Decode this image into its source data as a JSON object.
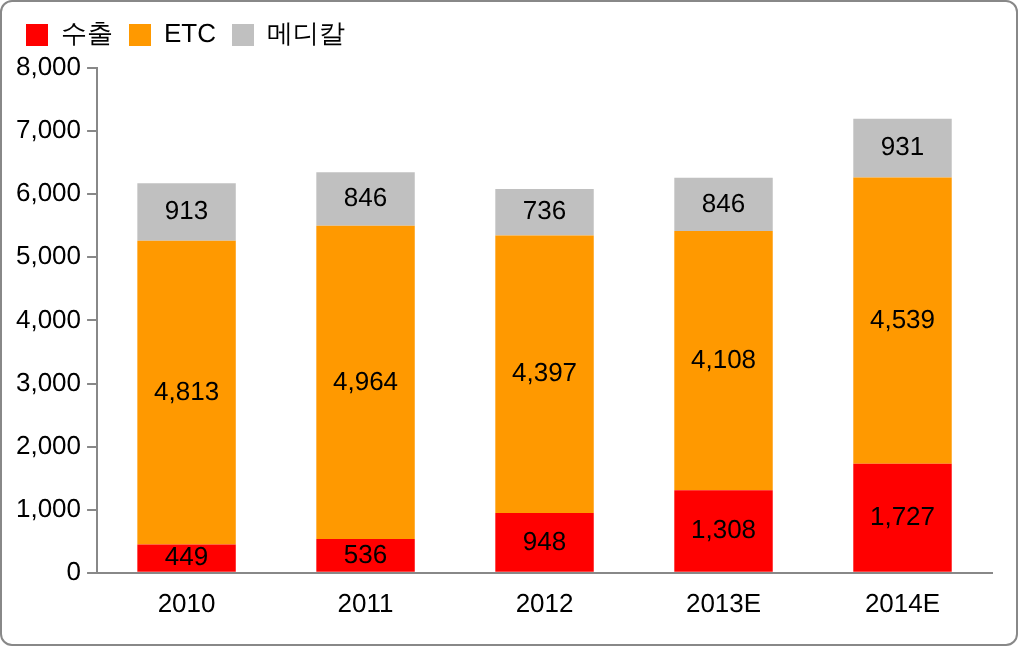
{
  "chart_data": {
    "type": "bar",
    "stacked": true,
    "categories": [
      "2010",
      "2011",
      "2012",
      "2013E",
      "2014E"
    ],
    "series": [
      {
        "name": "수출",
        "color": "#ff0000",
        "values": [
          449,
          536,
          948,
          1308,
          1727
        ],
        "value_labels": [
          "449",
          "536",
          "948",
          "1,308",
          "1,727"
        ]
      },
      {
        "name": "ETC",
        "color": "#ff9900",
        "values": [
          4813,
          4964,
          4397,
          4108,
          4539
        ],
        "value_labels": [
          "4,813",
          "4,964",
          "4,397",
          "4,108",
          "4,539"
        ]
      },
      {
        "name": "메디칼",
        "color": "#c0c0c0",
        "values": [
          913,
          846,
          736,
          846,
          931
        ],
        "value_labels": [
          "913",
          "846",
          "736",
          "846",
          "931"
        ]
      }
    ],
    "ylim": [
      0,
      8000
    ],
    "yticks": [
      {
        "value": 0,
        "label": "0"
      },
      {
        "value": 1000,
        "label": "1,000"
      },
      {
        "value": 2000,
        "label": "2,000"
      },
      {
        "value": 3000,
        "label": "3,000"
      },
      {
        "value": 4000,
        "label": "4,000"
      },
      {
        "value": 5000,
        "label": "5,000"
      },
      {
        "value": 6000,
        "label": "6,000"
      },
      {
        "value": 7000,
        "label": "7,000"
      },
      {
        "value": 8000,
        "label": "8,000"
      }
    ],
    "grid": false,
    "legend": "top left"
  }
}
